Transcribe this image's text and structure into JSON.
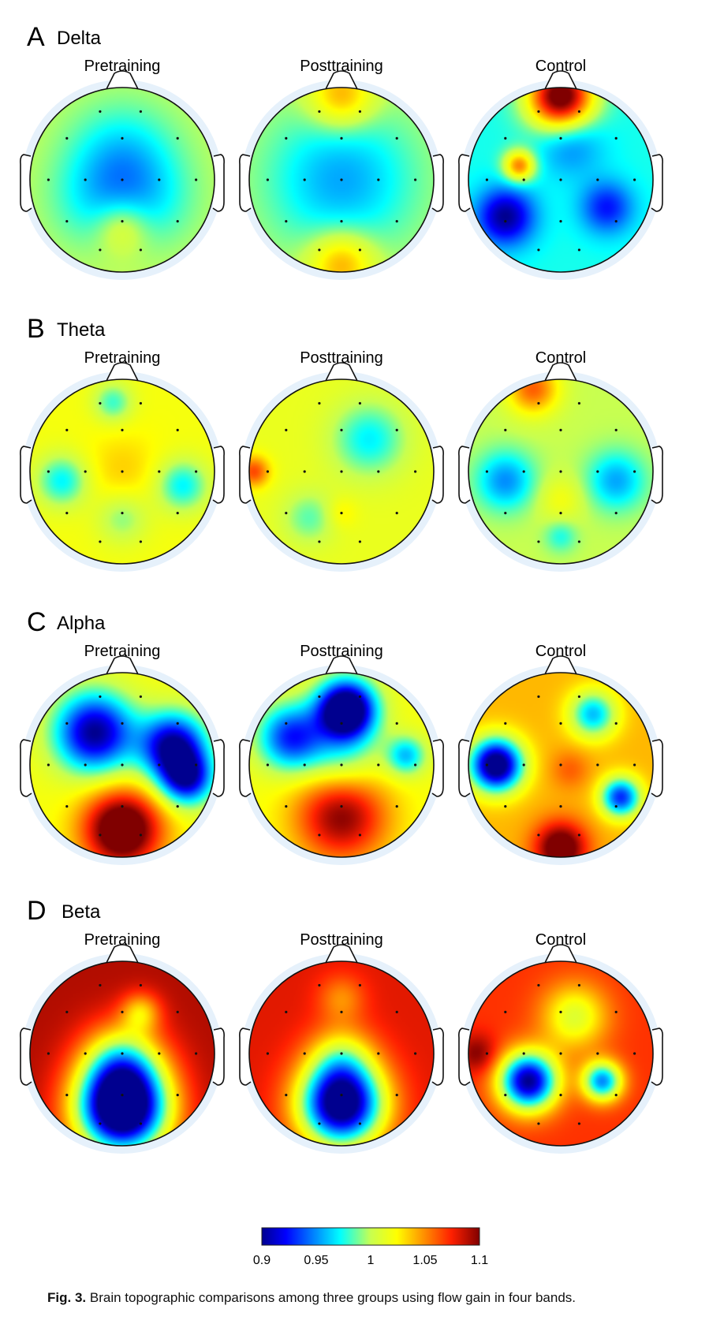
{
  "figure": {
    "caption_label": "Fig. 3.",
    "caption_text": "Brain topographic comparisons among three groups using flow gain in four bands.",
    "colorbar": {
      "min": 0.9,
      "max": 1.1,
      "tick_labels": [
        "0.9",
        "0.95",
        "1",
        "1.05",
        "1.1"
      ],
      "tick_values": [
        0.9,
        0.95,
        1.0,
        1.05,
        1.1
      ],
      "colormap": "jet"
    },
    "conditions": [
      "Pretraining",
      "Posttraining",
      "Control"
    ],
    "panels": [
      {
        "letter": "A",
        "band": "Delta",
        "maps": [
          {
            "base": 1.0,
            "blobs": [
              [
                0.0,
                0.5,
                0.03,
                0.2
              ],
              [
                0.0,
                -0.2,
                -0.04,
                0.4
              ],
              [
                -0.3,
                0.25,
                -0.02,
                0.35
              ],
              [
                0.3,
                0.25,
                -0.02,
                0.35
              ]
            ]
          },
          {
            "base": 1.0,
            "blobs": [
              [
                0.0,
                0.0,
                -0.045,
                0.55
              ],
              [
                0.0,
                -0.9,
                0.05,
                0.25
              ],
              [
                0.0,
                0.9,
                0.05,
                0.25
              ]
            ]
          },
          {
            "base": 0.975,
            "blobs": [
              [
                0.0,
                -0.9,
                0.14,
                0.25
              ],
              [
                -0.45,
                -0.15,
                0.08,
                0.12
              ],
              [
                -0.6,
                0.4,
                -0.075,
                0.22
              ],
              [
                0.5,
                0.3,
                -0.05,
                0.2
              ],
              [
                0.1,
                -0.4,
                -0.03,
                0.25
              ]
            ]
          }
        ]
      },
      {
        "letter": "B",
        "band": "Theta",
        "maps": [
          {
            "base": 1.02,
            "blobs": [
              [
                -0.65,
                0.1,
                -0.05,
                0.2
              ],
              [
                0.65,
                0.15,
                -0.05,
                0.2
              ],
              [
                -0.1,
                -0.75,
                -0.04,
                0.15
              ],
              [
                0.0,
                0.0,
                0.015,
                0.3
              ],
              [
                0.0,
                0.5,
                -0.03,
                0.2
              ]
            ]
          },
          {
            "base": 1.015,
            "blobs": [
              [
                0.3,
                -0.35,
                -0.045,
                0.28
              ],
              [
                -0.95,
                0.0,
                0.05,
                0.12
              ],
              [
                0.0,
                0.45,
                0.015,
                0.12
              ],
              [
                -0.35,
                0.5,
                -0.03,
                0.2
              ]
            ]
          },
          {
            "base": 1.0,
            "blobs": [
              [
                -0.6,
                0.1,
                -0.05,
                0.22
              ],
              [
                0.6,
                0.1,
                -0.045,
                0.22
              ],
              [
                0.0,
                0.3,
                0.02,
                0.18
              ],
              [
                -0.3,
                -0.9,
                0.06,
                0.2
              ],
              [
                0.0,
                0.7,
                -0.025,
                0.12
              ]
            ]
          }
        ]
      },
      {
        "letter": "C",
        "band": "Alpha",
        "maps": [
          {
            "base": 1.02,
            "blobs": [
              [
                0.0,
                0.7,
                0.11,
                0.3
              ],
              [
                -0.3,
                -0.35,
                -0.12,
                0.3
              ],
              [
                0.55,
                -0.2,
                -0.12,
                0.25
              ],
              [
                0.7,
                0.15,
                -0.1,
                0.2
              ]
            ]
          },
          {
            "base": 1.02,
            "blobs": [
              [
                0.05,
                -0.6,
                -0.16,
                0.22
              ],
              [
                0.0,
                0.55,
                0.08,
                0.35
              ],
              [
                -0.55,
                -0.3,
                -0.09,
                0.25
              ],
              [
                0.7,
                -0.1,
                -0.06,
                0.15
              ],
              [
                0.0,
                -0.1,
                -0.04,
                0.3
              ]
            ]
          },
          {
            "base": 1.04,
            "blobs": [
              [
                -0.7,
                0.0,
                -0.16,
                0.2
              ],
              [
                0.65,
                0.35,
                -0.11,
                0.15
              ],
              [
                0.35,
                -0.55,
                -0.08,
                0.18
              ],
              [
                0.0,
                0.9,
                0.08,
                0.2
              ],
              [
                0.1,
                0.05,
                0.02,
                0.15
              ]
            ]
          }
        ]
      },
      {
        "letter": "D",
        "band": "Beta",
        "maps": [
          {
            "base": 1.09,
            "blobs": [
              [
                0.0,
                0.6,
                -0.23,
                0.35
              ],
              [
                0.0,
                0.1,
                -0.08,
                0.3
              ],
              [
                0.2,
                -0.45,
                -0.05,
                0.15
              ]
            ]
          },
          {
            "base": 1.08,
            "blobs": [
              [
                0.0,
                0.55,
                -0.2,
                0.32
              ],
              [
                0.0,
                -0.6,
                -0.03,
                0.18
              ],
              [
                0.0,
                0.05,
                -0.05,
                0.25
              ]
            ]
          },
          {
            "base": 1.07,
            "blobs": [
              [
                -0.35,
                0.3,
                -0.17,
                0.22
              ],
              [
                0.45,
                0.3,
                -0.12,
                0.15
              ],
              [
                0.15,
                -0.4,
                -0.06,
                0.25
              ],
              [
                -0.9,
                0.0,
                0.03,
                0.15
              ]
            ]
          }
        ]
      }
    ]
  }
}
